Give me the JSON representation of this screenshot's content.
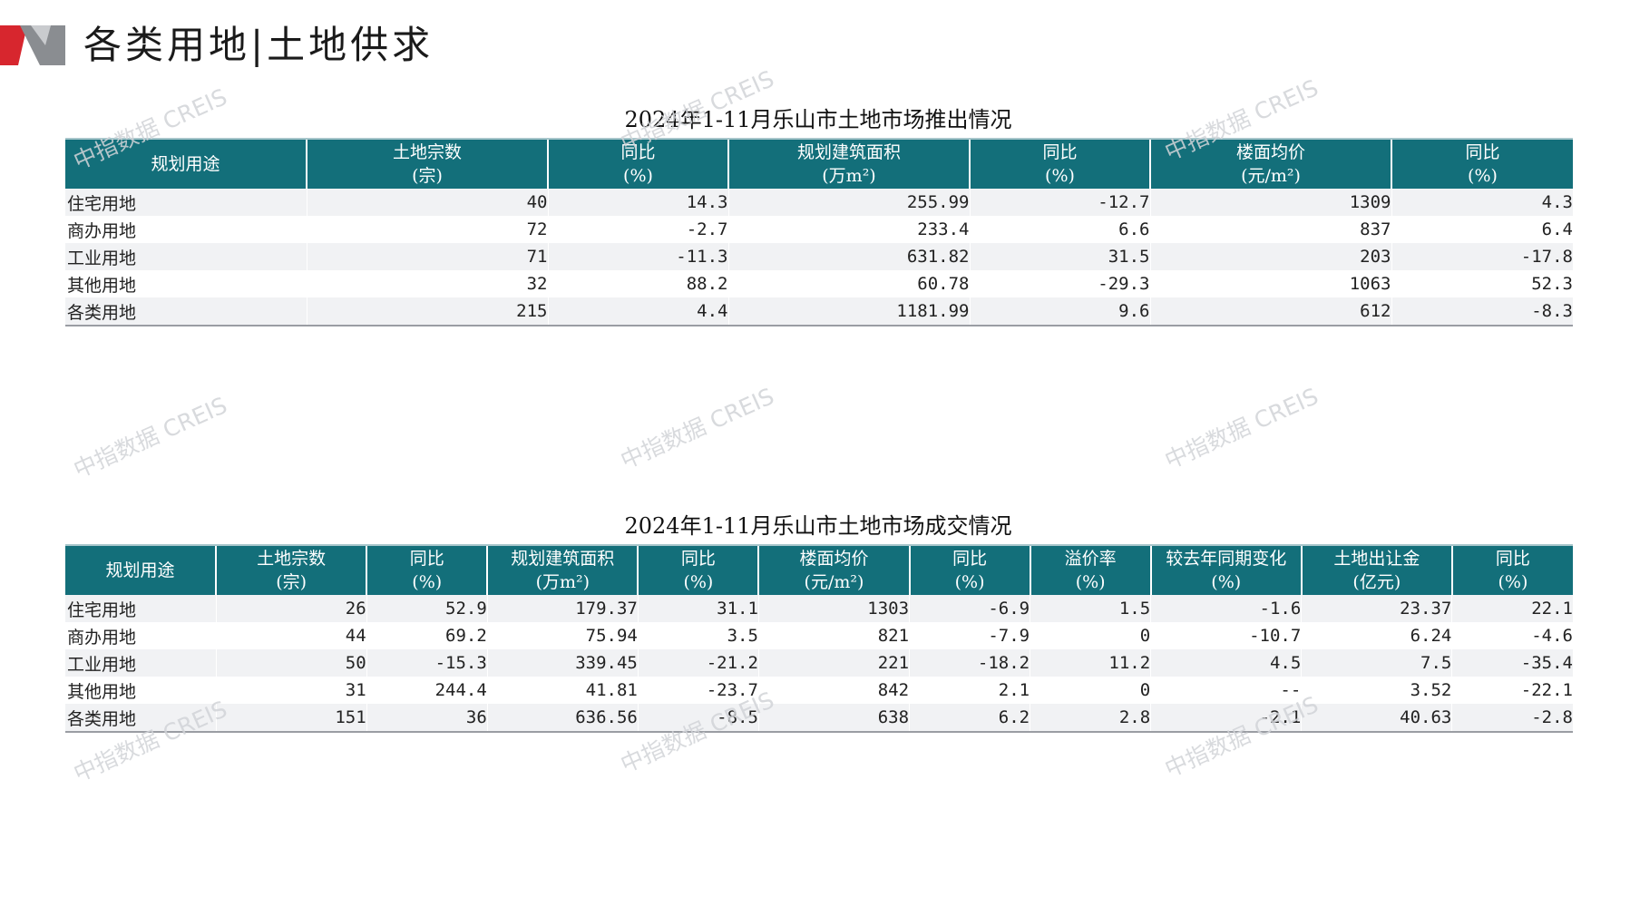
{
  "page": {
    "title": "各类用地|土地供求"
  },
  "supply": {
    "title": "2024年1-11月乐山市土地市场推出情况",
    "headers": [
      [
        "规划用途",
        ""
      ],
      [
        "土地宗数",
        "(宗)"
      ],
      [
        "同比",
        "(%)"
      ],
      [
        "规划建筑面积",
        "(万m²)"
      ],
      [
        "同比",
        "(%)"
      ],
      [
        "楼面均价",
        "(元/m²)"
      ],
      [
        "同比",
        "(%)"
      ]
    ],
    "rows": [
      [
        "住宅用地",
        "40",
        "14.3",
        "255.99",
        "-12.7",
        "1309",
        "4.3"
      ],
      [
        "商办用地",
        "72",
        "-2.7",
        "233.4",
        "6.6",
        "837",
        "6.4"
      ],
      [
        "工业用地",
        "71",
        "-11.3",
        "631.82",
        "31.5",
        "203",
        "-17.8"
      ],
      [
        "其他用地",
        "32",
        "88.2",
        "60.78",
        "-29.3",
        "1063",
        "52.3"
      ],
      [
        "各类用地",
        "215",
        "4.4",
        "1181.99",
        "9.6",
        "612",
        "-8.3"
      ]
    ]
  },
  "deals": {
    "title": "2024年1-11月乐山市土地市场成交情况",
    "headers": [
      [
        "规划用途",
        ""
      ],
      [
        "土地宗数",
        "(宗)"
      ],
      [
        "同比",
        "(%)"
      ],
      [
        "规划建筑面积",
        "(万m²)"
      ],
      [
        "同比",
        "(%)"
      ],
      [
        "楼面均价",
        "(元/m²)"
      ],
      [
        "同比",
        "(%)"
      ],
      [
        "溢价率",
        "(%)"
      ],
      [
        "较去年同期变化",
        "(%)"
      ],
      [
        "土地出让金",
        "(亿元)"
      ],
      [
        "同比",
        "(%)"
      ]
    ],
    "rows": [
      [
        "住宅用地",
        "26",
        "52.9",
        "179.37",
        "31.1",
        "1303",
        "-6.9",
        "1.5",
        "-1.6",
        "23.37",
        "22.1"
      ],
      [
        "商办用地",
        "44",
        "69.2",
        "75.94",
        "3.5",
        "821",
        "-7.9",
        "0",
        "-10.7",
        "6.24",
        "-4.6"
      ],
      [
        "工业用地",
        "50",
        "-15.3",
        "339.45",
        "-21.2",
        "221",
        "-18.2",
        "11.2",
        "4.5",
        "7.5",
        "-35.4"
      ],
      [
        "其他用地",
        "31",
        "244.4",
        "41.81",
        "-23.7",
        "842",
        "2.1",
        "0",
        "--",
        "3.52",
        "-22.1"
      ],
      [
        "各类用地",
        "151",
        "36",
        "636.56",
        "-8.5",
        "638",
        "6.2",
        "2.8",
        "-2.1",
        "40.63",
        "-2.8"
      ]
    ]
  },
  "watermark": {
    "text": "中指数据 CREIS"
  }
}
